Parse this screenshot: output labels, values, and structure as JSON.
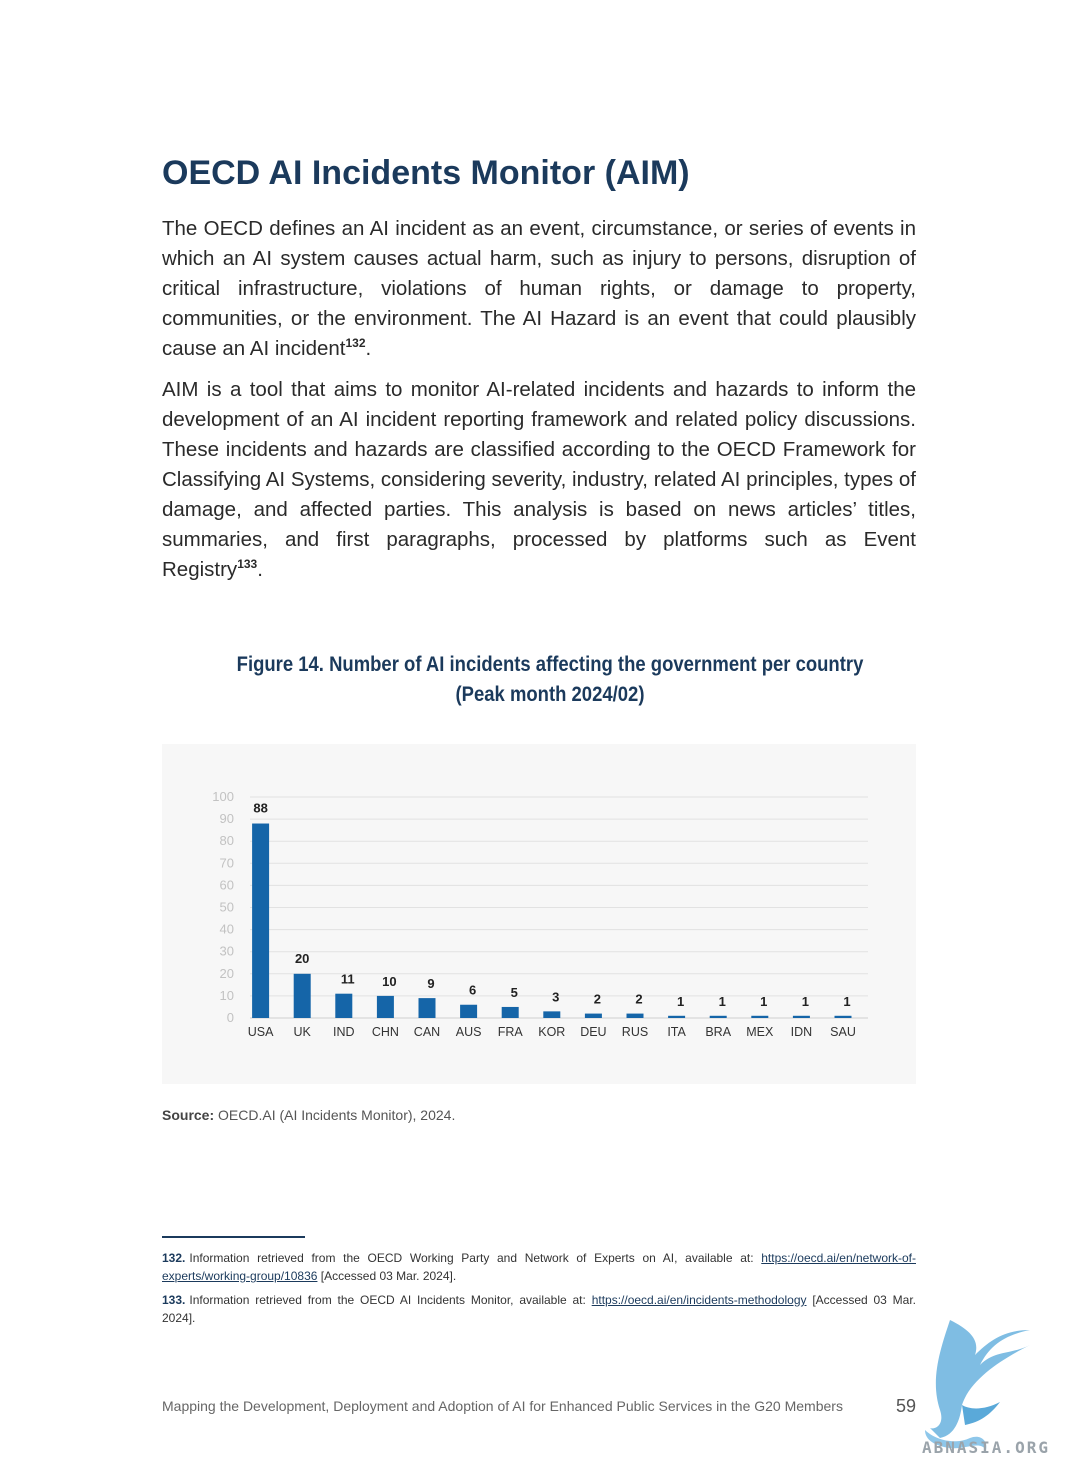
{
  "page": {
    "title": "OECD AI Incidents Monitor (AIM)",
    "para1_text": "The OECD defines an AI incident as an event, circumstance, or series of events in which an AI system causes actual harm, such as injury to persons, disruption of critical infrastructure, violations of human rights, or damage to property, communities, or the environment. The AI Hazard is an event that could plausibly cause an AI incident",
    "para1_ref": "132",
    "para1_end": ".",
    "para2_text": "AIM is a tool that aims to monitor AI-related incidents and hazards to inform the development of an AI incident reporting framework and related policy discussions. These incidents and hazards are classified according to the OECD Framework for Classifying AI Systems, considering severity, industry, related AI principles, types of damage, and affected parties. This analysis is based on news articles’ titles, summaries, and first paragraphs, processed by platforms such as Event Registry",
    "para2_ref": "133",
    "para2_end": "."
  },
  "figure": {
    "title_line1": "Figure 14. Number of AI incidents affecting the government per country",
    "title_line2": "(Peak month 2024/02)",
    "source_label": "Source:",
    "source_text": "OECD.AI (AI Incidents Monitor), 2024."
  },
  "chart_data": {
    "type": "bar",
    "categories": [
      "USA",
      "UK",
      "IND",
      "CHN",
      "CAN",
      "AUS",
      "FRA",
      "KOR",
      "DEU",
      "RUS",
      "ITA",
      "BRA",
      "MEX",
      "IDN",
      "SAU"
    ],
    "values": [
      88,
      20,
      11,
      10,
      9,
      6,
      5,
      3,
      2,
      2,
      1,
      1,
      1,
      1,
      1
    ],
    "yticks": [
      0,
      10,
      20,
      30,
      40,
      50,
      60,
      70,
      80,
      90,
      100
    ],
    "ylim": [
      0,
      100
    ],
    "grid": true,
    "bar_color": "#1565a8",
    "data_labels": true
  },
  "footnotes": [
    {
      "num": "132.",
      "text": "Information retrieved from the OECD Working Party and Network of Experts on AI, available at:",
      "link": "https://oecd.ai/en/network-of-experts/working-group/10836",
      "after": "[Accessed 03 Mar. 2024]."
    },
    {
      "num": "133.",
      "text": "Information retrieved from the OECD AI Incidents Monitor, available at:",
      "link": "https://oecd.ai/en/incidents-methodology",
      "after": "[Accessed 03 Mar. 2024]."
    }
  ],
  "footer": {
    "text": "Mapping the Development, Deployment and Adoption of AI for Enhanced Public Services in the G20 Members",
    "page_number": "59"
  },
  "watermark": {
    "text": "ABNASIA.ORG",
    "icon": "griffin-logo-icon"
  }
}
